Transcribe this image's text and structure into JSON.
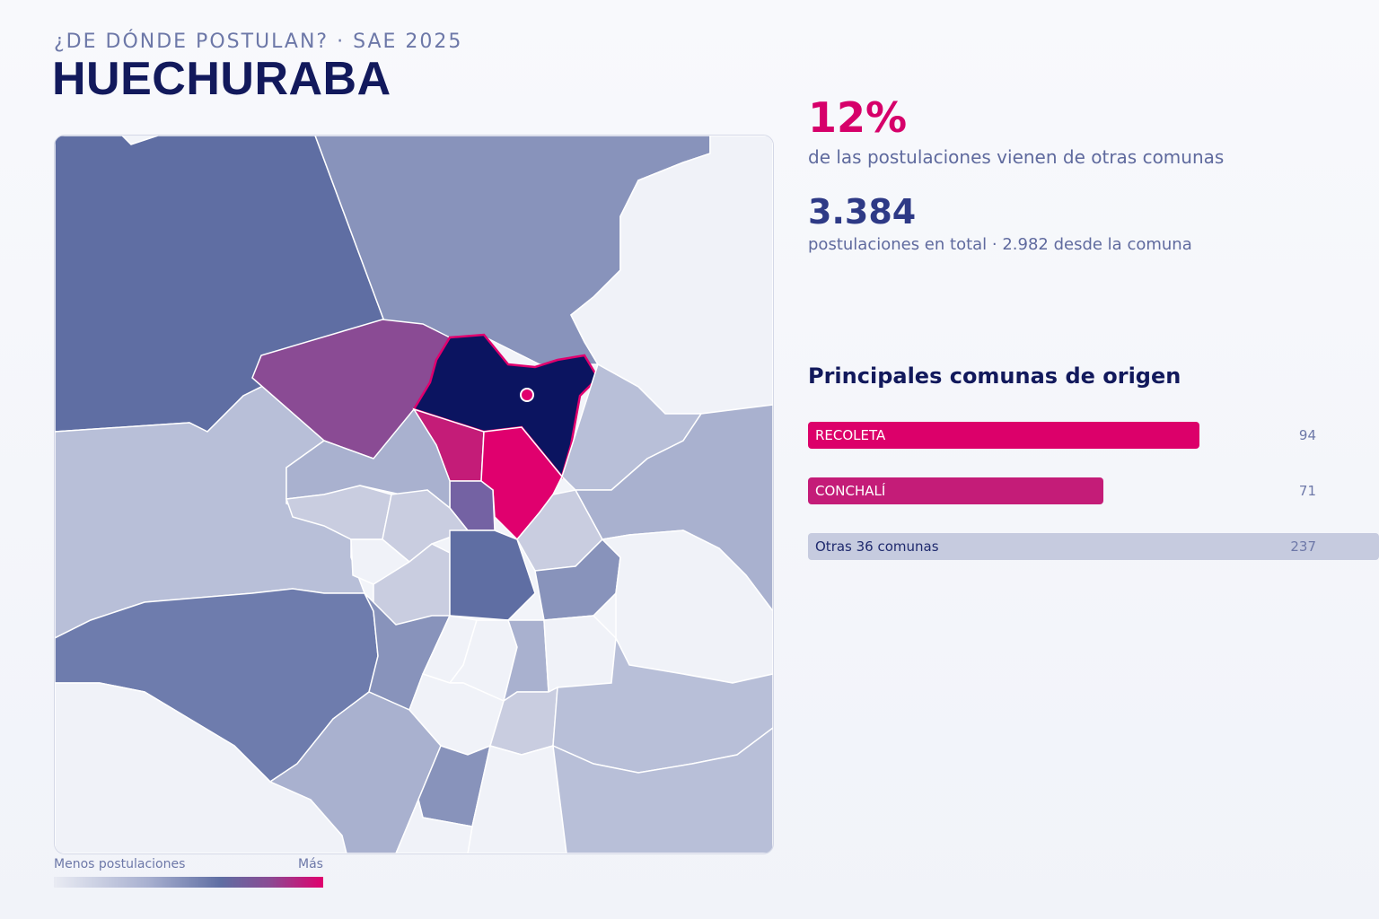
{
  "header": {
    "kicker": "¿DE DÓNDE POSTULAN? · SAE 2025",
    "title": "HUECHURABA"
  },
  "stats": {
    "external_pct": "12%",
    "external_label": "de las postulaciones vienen de otras comunas",
    "total": "3.384",
    "total_label": "postulaciones en total · 2.982 desde la comuna"
  },
  "origins": {
    "title": "Principales comunas de origen",
    "items": [
      {
        "label": "RECOLETA",
        "value": 94,
        "color": "#dc006a"
      },
      {
        "label": "CONCHALÍ",
        "value": 71,
        "color": "#c41c78"
      },
      {
        "label": "Otras 36 comunas",
        "value": 237,
        "color": "#c6cbdf"
      }
    ]
  },
  "legend": {
    "min_label": "Menos postulaciones",
    "max_label": "Más",
    "colors": [
      "#e9ebf3",
      "#a8b0d0",
      "#5f6ea3",
      "#8a4b94",
      "#e0006e"
    ]
  },
  "map": {
    "selected_commune_color": "#0b1460",
    "selected_outline_color": "#e0006e",
    "highlight_colors": [
      "#e0006e",
      "#c41c78",
      "#8a4b94",
      "#7462a3",
      "#5f6ea3",
      "#8893bb",
      "#a9b1cf",
      "#b8bfd8",
      "#c9cde0",
      "#f0f2f8"
    ]
  }
}
